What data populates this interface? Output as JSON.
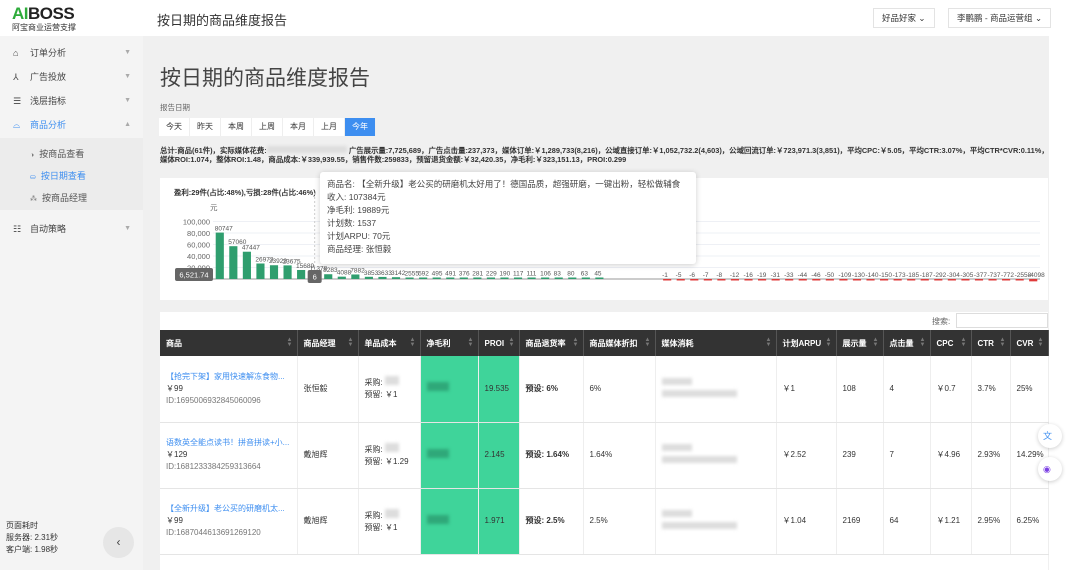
{
  "brand": {
    "name_a": "AI",
    "name_b": "BOSS",
    "tagline": "阿宝商业运营支撑"
  },
  "header": {
    "title": "按日期的商品维度报告",
    "shop": "好品好家",
    "user": "李鹏鹏 - 商品运营组"
  },
  "sidebar": {
    "items": [
      {
        "label": "订单分析",
        "icon": "home-icon"
      },
      {
        "label": "广告投放",
        "icon": "branch-icon"
      },
      {
        "label": "浅层指标",
        "icon": "filter-icon"
      },
      {
        "label": "商品分析",
        "icon": "product-icon",
        "active": true
      },
      {
        "label": "自动策略",
        "icon": "sliders-icon"
      }
    ],
    "sub": [
      {
        "label": "按商品查看"
      },
      {
        "label": "按日期查看",
        "active": true
      },
      {
        "label": "按商品经理"
      }
    ],
    "perf": {
      "title": "页面耗时",
      "server": "服务器: 2.31秒",
      "client": "客户端: 1.98秒"
    }
  },
  "page": {
    "title": "按日期的商品维度报告",
    "date_label": "报告日期",
    "dates": [
      "今天",
      "昨天",
      "本周",
      "上周",
      "本月",
      "上月",
      "今年"
    ],
    "active_date": "今年"
  },
  "summary": {
    "a": "总计:商品(61件)，实际媒体花费:",
    "b": "广告展示量:7,725,689，广告点击量:237,373，媒体订单:￥1,289,733(8,216)，公域直接订单:￥1,052,732.2(4,603)，公域回流订单:￥723,971.3(3,851)，平均CPC:￥5.05，平均CTR:3.07%，平均CTR*CVR:0.11%，媒体ROI:1.074，整体ROI:1.48，商品成本:￥339,939.55，销售件数:259833，预留退货金额:￥32,420.35，净毛利:￥323,151.13，PROI:0.299"
  },
  "chart_data": {
    "type": "bar",
    "title": "盈利:29件(占比:48%),亏损:28件(占比:46%)",
    "ylabel": "元",
    "ylim": [
      -10000,
      100000
    ],
    "yticks": [
      "100,000",
      "80,000",
      "60,000",
      "40,000",
      "20,000"
    ],
    "values": [
      80747,
      57060,
      47447,
      26973,
      23929,
      23675,
      15689,
      11378,
      8283,
      4088,
      7882,
      3853,
      3633,
      3142,
      2555,
      592,
      495,
      491,
      376,
      281,
      229,
      190,
      117,
      111,
      106,
      83,
      80,
      63,
      45,
      0,
      0,
      0,
      0,
      -1,
      -5,
      -6,
      -7,
      -8,
      -12,
      -16,
      -19,
      -31,
      -33,
      -44,
      -46,
      -50,
      -109,
      -130,
      -140,
      -150,
      -173,
      -185,
      -187,
      -292,
      -304,
      -305,
      -377,
      -737,
      -772,
      -2558,
      -4098
    ],
    "colors": {
      "positive": "#2f9e6e",
      "negative": "#e03b3b"
    },
    "pointer": {
      "y_value": "6,521.74",
      "x_value": "6"
    },
    "tooltip": {
      "name": "商品名: 【全新升级】老公买的研磨机太好用了！德国品质，超强研磨，一键出粉，轻松做辅食",
      "income": "收入: 107384元",
      "profit": "净毛利: 19889元",
      "plans": "计划数: 1537",
      "arpu": "计划ARPU: 70元",
      "manager": "商品经理: 张恒毅"
    }
  },
  "table": {
    "search_label": "搜索:",
    "columns": [
      "商品",
      "商品经理",
      "单品成本",
      "净毛利",
      "PROI",
      "商品退货率",
      "商品媒体折扣",
      "媒体消耗",
      "计划ARPU",
      "展示量",
      "点击量",
      "CPC",
      "CTR",
      "CVR"
    ],
    "rows": [
      {
        "name": "【抢完下架】家用快速解冻食物...",
        "price": "￥99",
        "id": "ID:1695006932845060096",
        "manager": "张恒毅",
        "buy": "采购:",
        "reserve": "预留: ￥1",
        "proi": "19.535",
        "return": "预设: 6%",
        "discount": "6%",
        "arpu": "￥1",
        "views": "108",
        "clicks": "4",
        "cpc": "￥0.7",
        "ctr": "3.7%",
        "cvr": "25%"
      },
      {
        "name": "语数英全能点读书！拼音拼读+小...",
        "price": "￥129",
        "id": "ID:1681233384259313664",
        "manager": "戴旭辉",
        "buy": "采购:",
        "reserve": "预留: ￥1.29",
        "proi": "2.145",
        "return": "预设: 1.64%",
        "discount": "1.64%",
        "arpu": "￥2.52",
        "views": "239",
        "clicks": "7",
        "cpc": "￥4.96",
        "ctr": "2.93%",
        "cvr": "14.29%"
      },
      {
        "name": "【全新升级】老公买的研磨机太...",
        "price": "￥99",
        "id": "ID:1687044613691269120",
        "manager": "戴旭辉",
        "buy": "采购:",
        "reserve": "预留: ￥1",
        "proi": "1.971",
        "return": "预设: 2.5%",
        "discount": "2.5%",
        "arpu": "￥1.04",
        "views": "2169",
        "clicks": "64",
        "cpc": "￥1.21",
        "ctr": "2.95%",
        "cvr": "6.25%"
      }
    ]
  },
  "fab": {
    "translate": "文"
  }
}
